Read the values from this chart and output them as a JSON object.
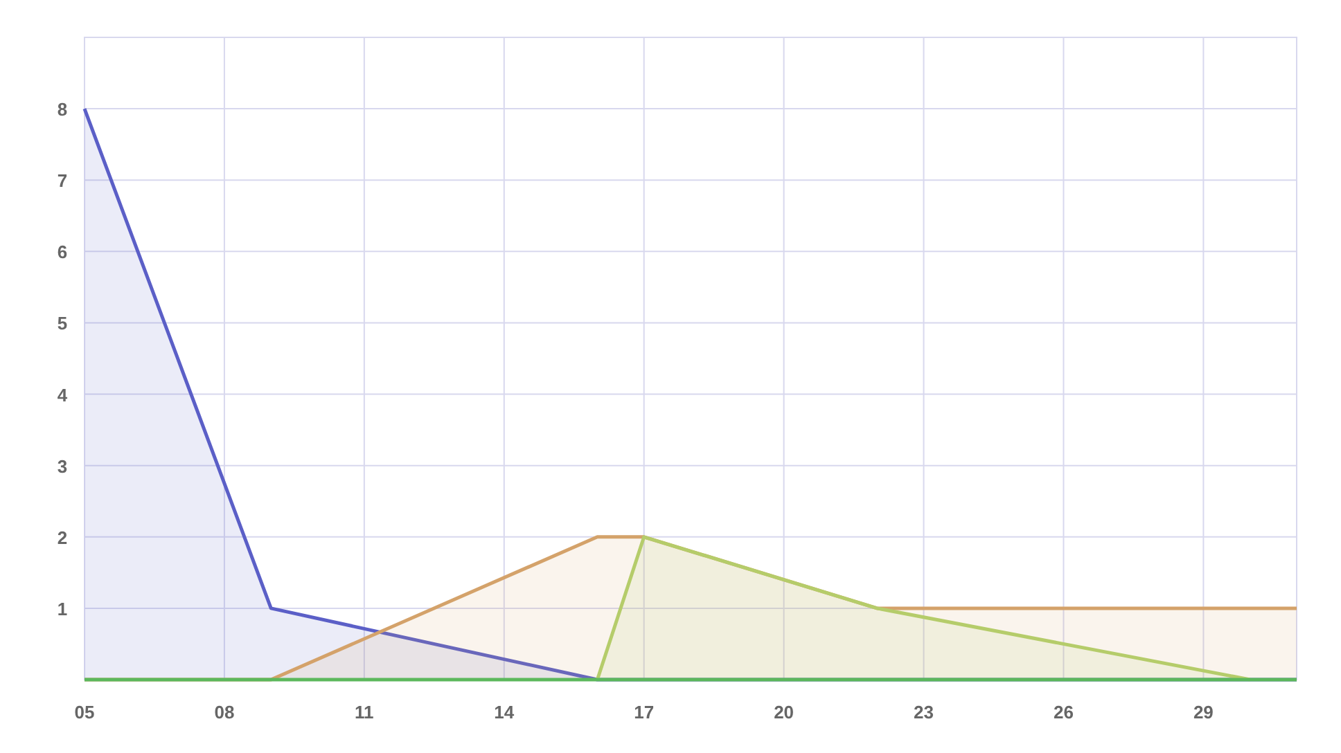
{
  "chart_data": {
    "type": "area",
    "xlim": [
      5,
      31
    ],
    "ylim": [
      0,
      9
    ],
    "xticks": [
      {
        "value": 5,
        "label": "05"
      },
      {
        "value": 8,
        "label": "08"
      },
      11,
      14,
      17,
      20,
      23,
      26,
      29
    ],
    "yticks": [
      1,
      2,
      3,
      4,
      5,
      6,
      7,
      8
    ],
    "grid": true,
    "series": [
      {
        "color": "#5b5fc7",
        "x": [
          5,
          9,
          16,
          31
        ],
        "values": [
          8,
          1,
          0,
          0
        ]
      },
      {
        "color": "#d4a26a",
        "x": [
          5,
          9,
          16,
          17,
          22,
          31
        ],
        "values": [
          0,
          0,
          2,
          2,
          1,
          1
        ]
      },
      {
        "color": "#b5cc6a",
        "x": [
          16,
          17,
          22,
          30
        ],
        "values": [
          0,
          2,
          1,
          0
        ]
      },
      {
        "type": "line",
        "color": "#5cb85c",
        "x": [
          5,
          31
        ],
        "values": [
          0,
          0
        ]
      }
    ]
  }
}
